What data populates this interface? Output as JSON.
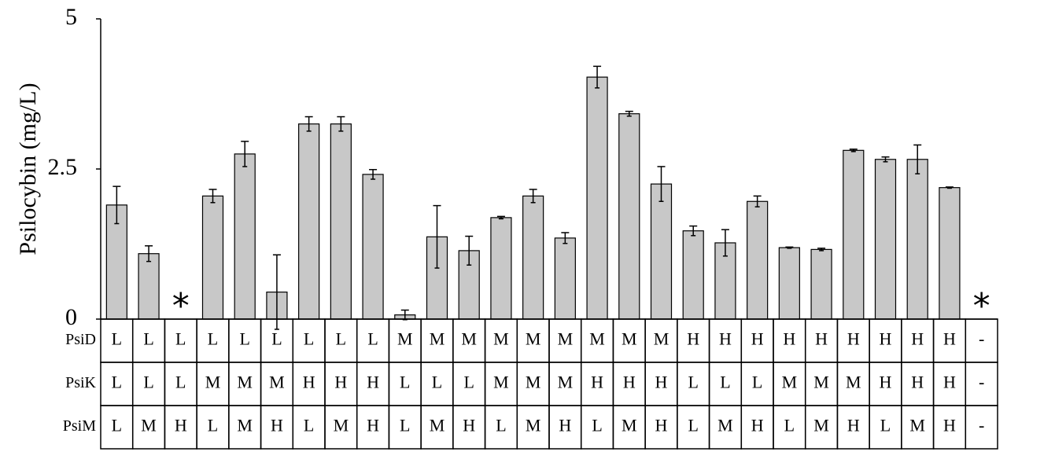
{
  "chart_data": {
    "type": "bar",
    "y_label": "Psilocybin (mg/L)",
    "categories": [
      null,
      null,
      null,
      null,
      null,
      null,
      null,
      null,
      null,
      null,
      null,
      null,
      null,
      null,
      null,
      null,
      null,
      null,
      null,
      null,
      null,
      null,
      null,
      null,
      null,
      null,
      null,
      null
    ],
    "values": [
      1.9,
      1.09,
      null,
      2.05,
      2.75,
      0.45,
      3.25,
      3.25,
      2.41,
      0.07,
      1.37,
      1.14,
      1.69,
      2.05,
      1.35,
      4.03,
      3.42,
      2.25,
      1.47,
      1.27,
      1.96,
      1.19,
      1.16,
      2.81,
      2.66,
      2.66,
      2.19,
      null
    ],
    "errors": [
      0.31,
      0.13,
      null,
      0.11,
      0.21,
      0.62,
      0.12,
      0.12,
      0.08,
      0.08,
      0.52,
      0.24,
      0.02,
      0.11,
      0.09,
      0.18,
      0.04,
      0.29,
      0.08,
      0.22,
      0.09,
      0.01,
      0.02,
      0.02,
      0.04,
      0.24,
      0.01,
      null
    ],
    "annotations": [
      null,
      null,
      "*",
      null,
      null,
      null,
      null,
      null,
      null,
      null,
      null,
      null,
      null,
      null,
      null,
      null,
      null,
      null,
      null,
      null,
      null,
      null,
      null,
      null,
      null,
      null,
      null,
      "*"
    ],
    "color": "#c8c8c8",
    "ylim": [
      0,
      5
    ],
    "yticks": [
      0,
      2.5,
      5
    ],
    "table": {
      "rows": [
        {
          "label": "PsiD",
          "cells": [
            "L",
            "L",
            "L",
            "L",
            "L",
            "L",
            "L",
            "L",
            "L",
            "M",
            "M",
            "M",
            "M",
            "M",
            "M",
            "M",
            "M",
            "M",
            "H",
            "H",
            "H",
            "H",
            "H",
            "H",
            "H",
            "H",
            "H",
            "-"
          ]
        },
        {
          "label": "PsiK",
          "cells": [
            "L",
            "L",
            "L",
            "M",
            "M",
            "M",
            "H",
            "H",
            "H",
            "L",
            "L",
            "L",
            "M",
            "M",
            "M",
            "H",
            "H",
            "H",
            "L",
            "L",
            "L",
            "M",
            "M",
            "M",
            "H",
            "H",
            "H",
            "-"
          ]
        },
        {
          "label": "PsiM",
          "cells": [
            "L",
            "M",
            "H",
            "L",
            "M",
            "H",
            "L",
            "M",
            "H",
            "L",
            "M",
            "H",
            "L",
            "M",
            "H",
            "L",
            "M",
            "H",
            "L",
            "M",
            "H",
            "L",
            "M",
            "H",
            "L",
            "M",
            "H",
            "-"
          ]
        }
      ]
    }
  }
}
